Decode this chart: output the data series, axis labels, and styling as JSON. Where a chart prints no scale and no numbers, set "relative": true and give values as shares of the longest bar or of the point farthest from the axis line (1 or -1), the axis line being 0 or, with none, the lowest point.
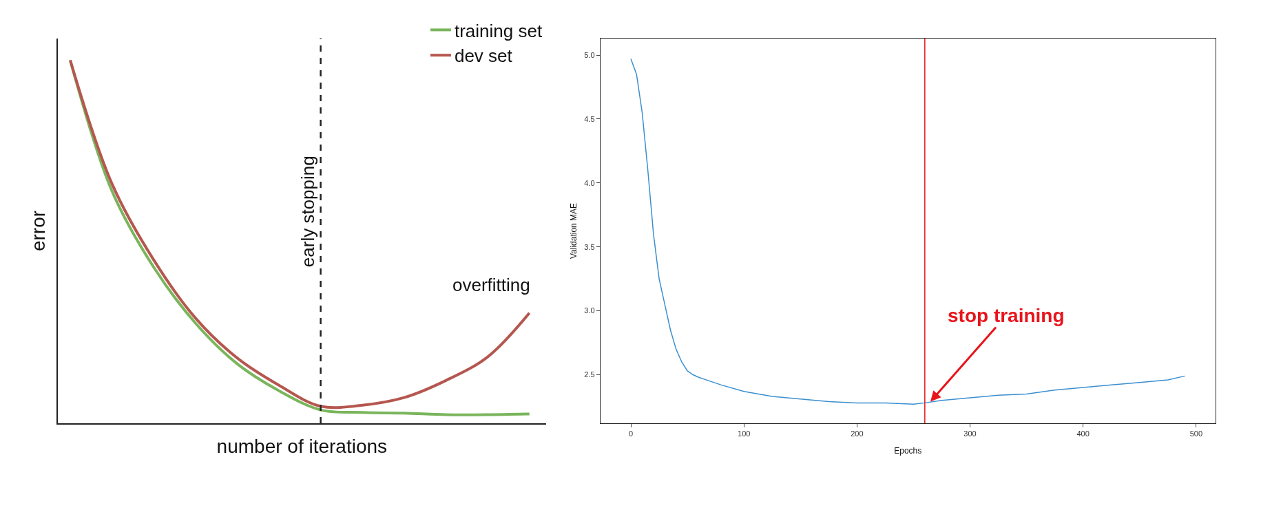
{
  "chart_data": [
    {
      "type": "line",
      "relative": true,
      "xlabel": "number of iterations",
      "ylabel": "error",
      "legend": "top right",
      "marker": "none",
      "categories": [
        null,
        null,
        null,
        null,
        null,
        null,
        null,
        null,
        null,
        null,
        null,
        null
      ],
      "series": [
        {
          "name": "training set",
          "color": "#7ab55c",
          "values": [
            1,
            0.64,
            0.43,
            0.276,
            0.164,
            0.09,
            0.037,
            0.03,
            0.028,
            0.024,
            0.024,
            0.026
          ]
        },
        {
          "name": "dev set",
          "color": "#b5574f",
          "values": [
            1,
            0.66,
            0.45,
            0.29,
            0.18,
            0.105,
            0.047,
            0.05,
            0.071,
            0.118,
            0.183,
            0.304
          ]
        }
      ],
      "annotations": [
        "early stopping",
        "overfitting"
      ]
    },
    {
      "type": "line",
      "xlabel": "Epochs",
      "ylabel": "Validation MAE",
      "legend": false,
      "marker": "none",
      "x": [
        0,
        5,
        10,
        15,
        20,
        25,
        30,
        35,
        40,
        45,
        50,
        55,
        60,
        80,
        100,
        125,
        150,
        175,
        200,
        225,
        250,
        260,
        275,
        300,
        325,
        350,
        375,
        400,
        425,
        450,
        475,
        490
      ],
      "series": [
        {
          "color": "#3b8fd0",
          "values": [
            4.97,
            4.85,
            4.55,
            4.1,
            3.6,
            3.25,
            3.05,
            2.85,
            2.7,
            2.6,
            2.53,
            2.5,
            2.48,
            2.42,
            2.37,
            2.33,
            2.31,
            2.29,
            2.28,
            2.28,
            2.27,
            2.28,
            2.3,
            2.32,
            2.34,
            2.35,
            2.38,
            2.4,
            2.42,
            2.44,
            2.46,
            2.49
          ]
        }
      ],
      "xlim": [
        -27,
        517
      ],
      "ylim": [
        2.12,
        5.13
      ],
      "xticks": [
        0,
        100,
        200,
        300,
        400,
        500
      ],
      "yticks": [
        2.5,
        {
          "value": 3,
          "label": "3.0"
        },
        3.5,
        {
          "value": 4,
          "label": "4.0"
        },
        4.5,
        {
          "value": 5,
          "label": "5.0"
        }
      ],
      "ref_lines": [
        {
          "axis": "x",
          "value": 260,
          "color": "#e8141b",
          "line_style": "solid"
        }
      ],
      "annotations": [
        {
          "text": "stop training",
          "x": 265,
          "y": 2.29
        }
      ]
    }
  ]
}
